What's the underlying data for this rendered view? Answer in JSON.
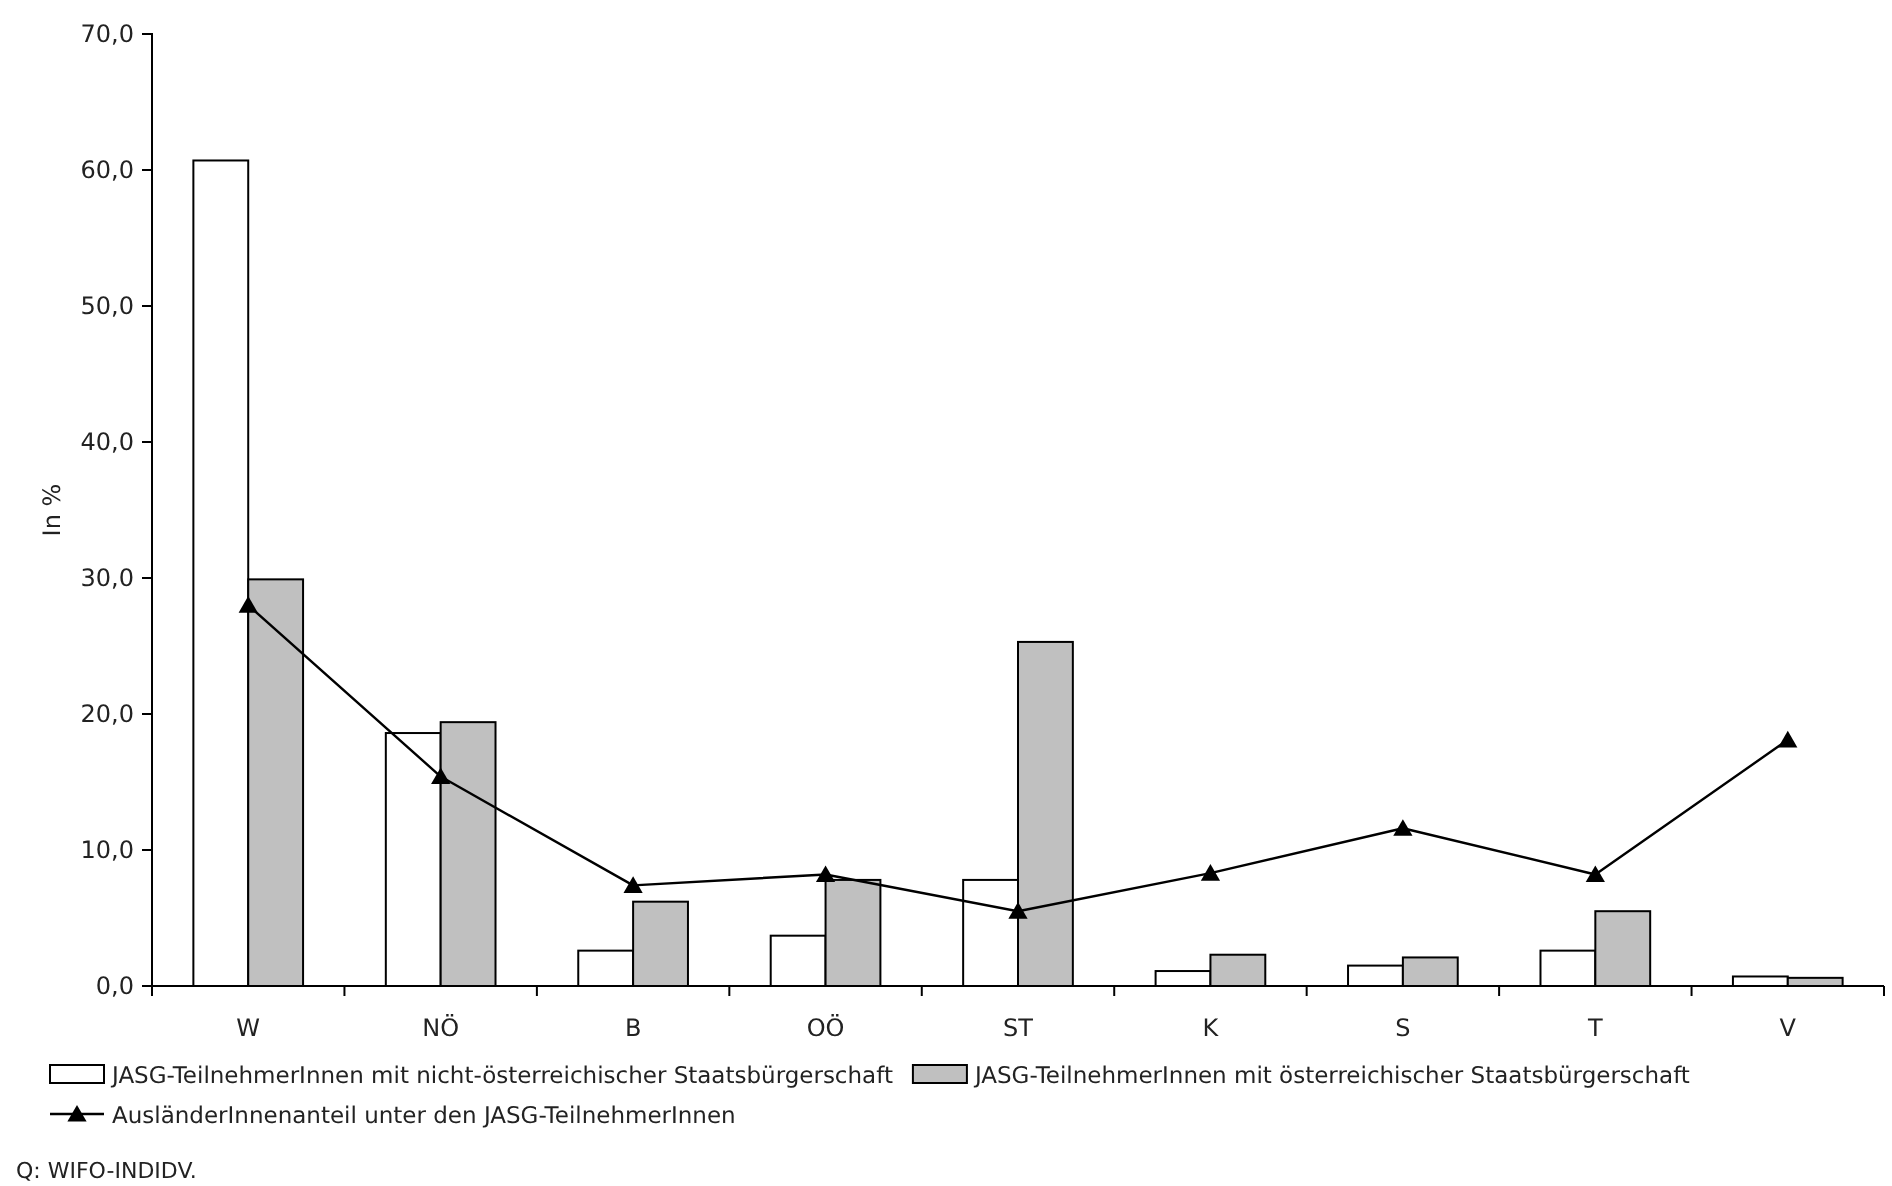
{
  "chart_data": {
    "type": "bar",
    "ylabel": "In %",
    "categories": [
      "W",
      "NÖ",
      "B",
      "OÖ",
      "ST",
      "K",
      "S",
      "T",
      "V"
    ],
    "series": [
      {
        "name": "JASG-TeilnehmerInnen mit nicht-österreichischer Staatsbürgerschaft",
        "color": "#ffffff",
        "values": [
          60.7,
          18.6,
          2.6,
          3.7,
          7.8,
          1.1,
          1.5,
          2.6,
          0.7
        ]
      },
      {
        "name": "JASG-TeilnehmerInnen mit österreichischer Staatsbürgerschaft",
        "color": "#c0c0c0",
        "values": [
          29.9,
          19.4,
          6.2,
          7.8,
          25.3,
          2.3,
          2.1,
          5.5,
          0.6
        ]
      },
      {
        "name": "AusländerInnenanteil unter den JASG-TeilnehmerInnen",
        "type": "line",
        "color": "#000000",
        "values": [
          28.0,
          15.4,
          7.4,
          8.2,
          5.5,
          8.3,
          11.6,
          8.2,
          18.1
        ]
      }
    ],
    "ylim": [
      0,
      70
    ],
    "yticks": [
      {
        "value": 0,
        "label": "0,0"
      },
      {
        "value": 10,
        "label": "10,0"
      },
      {
        "value": 20,
        "label": "20,0"
      },
      {
        "value": 30,
        "label": "30,0"
      },
      {
        "value": 40,
        "label": "40,0"
      },
      {
        "value": 50,
        "label": "50,0"
      },
      {
        "value": 60,
        "label": "60,0"
      },
      {
        "value": 70,
        "label": "70,0"
      }
    ],
    "marker": "triangle",
    "line_style": "solid",
    "legend": "bottom",
    "annotations": [
      "Q: WIFO-INDIDV."
    ]
  }
}
